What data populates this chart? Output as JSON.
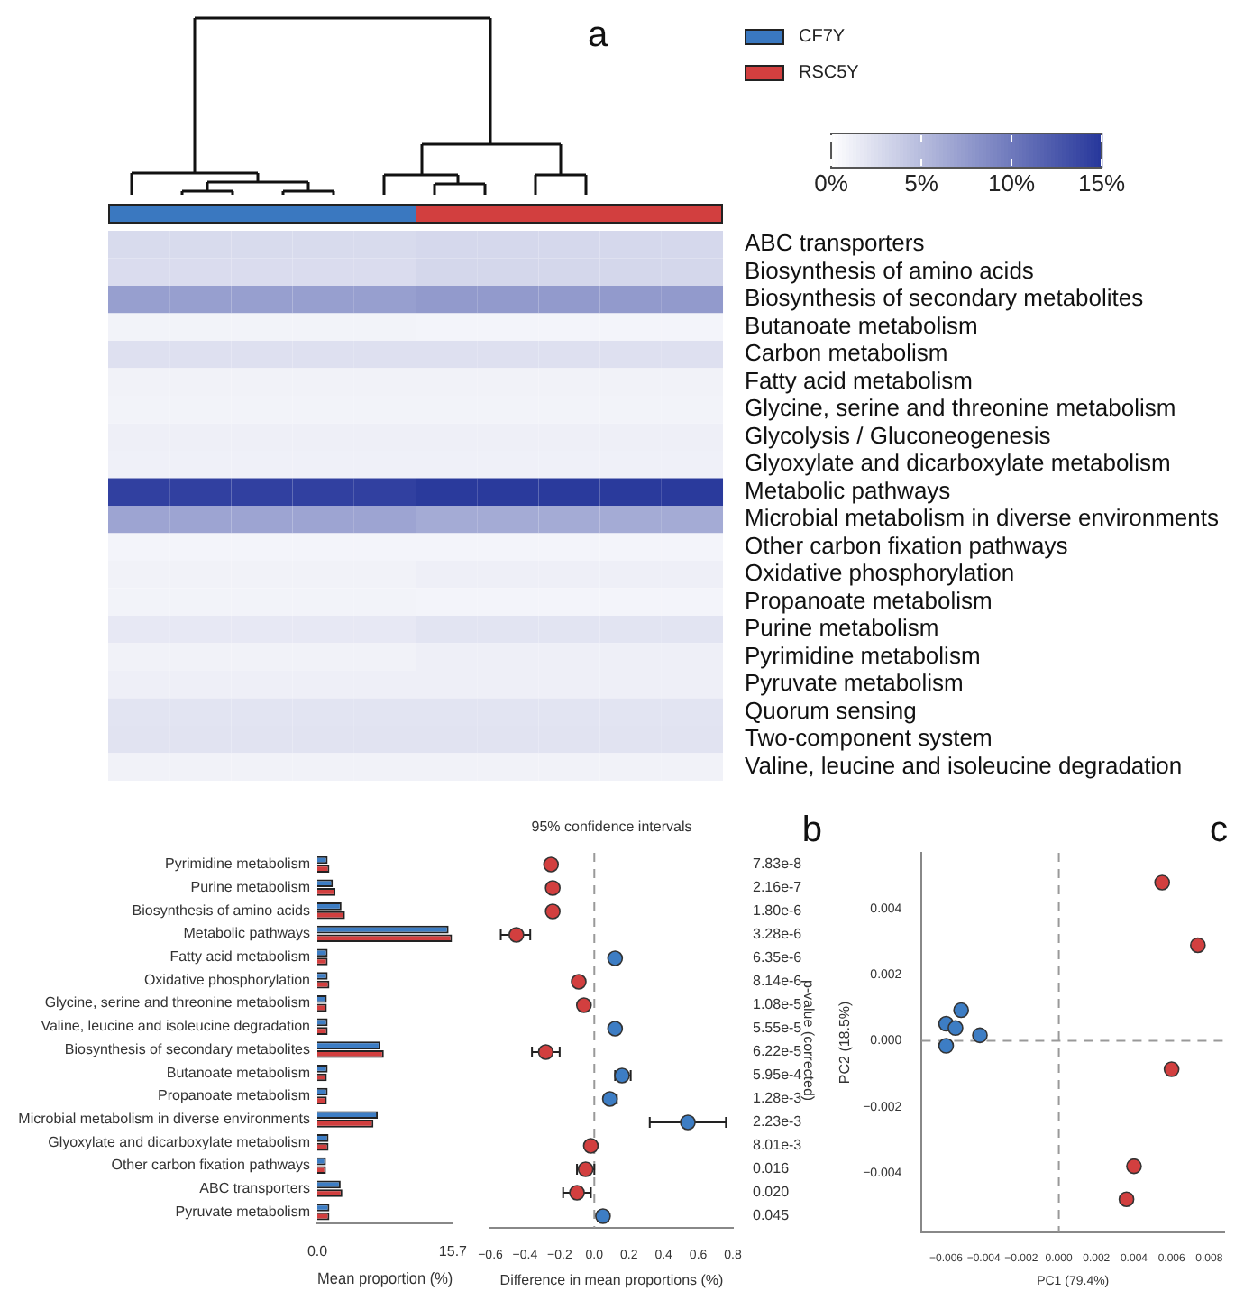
{
  "chart_data": [
    {
      "type": "heatmap",
      "annotations": [
        "a",
        "CF7Y",
        "RSC5Y"
      ],
      "colors": [
        "#3a78c0",
        "#d23f3f"
      ],
      "categories": [
        null,
        null,
        null,
        null,
        null,
        null,
        null,
        null,
        null,
        null
      ],
      "y_categories": [
        "ABC transporters",
        "Biosynthesis of amino acids",
        "Biosynthesis of secondary metabolites",
        "Butanoate metabolism",
        "Carbon metabolism",
        "Fatty acid metabolism",
        "Glycine, serine and threonine metabolism",
        "Glycolysis / Gluconeogenesis",
        "Glyoxylate and dicarboxylate metabolism",
        "Metabolic pathways",
        "Microbial metabolism in diverse environments",
        "Other carbon fixation pathways",
        "Oxidative phosphorylation",
        "Propanoate metabolism",
        "Purine metabolism",
        "Pyrimidine metabolism",
        "Pyruvate metabolism",
        "Quorum sensing",
        "Two-component system",
        "Valine, leucine and isoleucine degradation"
      ],
      "cells": [
        [
          2.7,
          2.7,
          2.7,
          2.7,
          2.7,
          2.9,
          2.9,
          2.9,
          2.9,
          2.9
        ],
        [
          2.6,
          2.6,
          2.6,
          2.6,
          2.6,
          3.0,
          3.0,
          3.0,
          3.0,
          3.0
        ],
        [
          7.2,
          7.2,
          7.2,
          7.2,
          7.2,
          7.6,
          7.6,
          7.6,
          7.6,
          7.6
        ],
        [
          0.9,
          0.9,
          0.9,
          0.9,
          0.9,
          0.8,
          0.8,
          0.8,
          0.8,
          0.8
        ],
        [
          2.3,
          2.3,
          2.3,
          2.3,
          2.3,
          2.3,
          2.3,
          2.3,
          2.3,
          2.3
        ],
        [
          1.0,
          1.0,
          1.0,
          1.0,
          1.0,
          1.0,
          1.0,
          1.0,
          1.0,
          1.0
        ],
        [
          0.9,
          0.9,
          0.9,
          0.9,
          0.9,
          0.9,
          0.9,
          0.9,
          0.9,
          0.9
        ],
        [
          1.2,
          1.2,
          1.2,
          1.2,
          1.2,
          1.2,
          1.2,
          1.2,
          1.2,
          1.2
        ],
        [
          1.1,
          1.1,
          1.1,
          1.1,
          1.1,
          1.1,
          1.1,
          1.1,
          1.1,
          1.1
        ],
        [
          14.3,
          14.3,
          14.3,
          14.3,
          14.3,
          14.8,
          14.8,
          14.8,
          14.8,
          14.8
        ],
        [
          6.8,
          6.8,
          6.8,
          6.8,
          6.8,
          6.3,
          6.3,
          6.3,
          6.3,
          6.3
        ],
        [
          0.8,
          0.8,
          0.8,
          0.8,
          0.8,
          0.8,
          0.8,
          0.8,
          0.8,
          0.8
        ],
        [
          1.0,
          1.0,
          1.0,
          1.0,
          1.0,
          1.2,
          1.2,
          1.2,
          1.2,
          1.2
        ],
        [
          0.9,
          0.9,
          0.9,
          0.9,
          0.9,
          0.8,
          0.8,
          0.8,
          0.8,
          0.8
        ],
        [
          1.7,
          1.7,
          1.7,
          1.7,
          1.7,
          2.0,
          2.0,
          2.0,
          2.0,
          2.0
        ],
        [
          1.0,
          1.0,
          1.0,
          1.0,
          1.0,
          1.2,
          1.2,
          1.2,
          1.2,
          1.2
        ],
        [
          1.2,
          1.2,
          1.2,
          1.2,
          1.2,
          1.2,
          1.2,
          1.2,
          1.2,
          1.2
        ],
        [
          2.0,
          2.0,
          2.0,
          2.0,
          2.0,
          2.0,
          2.0,
          2.0,
          2.0,
          2.0
        ],
        [
          2.1,
          2.1,
          2.1,
          2.1,
          2.1,
          2.1,
          2.1,
          2.1,
          2.1,
          2.1
        ],
        [
          1.0,
          1.0,
          1.0,
          1.0,
          1.0,
          1.0,
          1.0,
          1.0,
          1.0,
          1.0
        ]
      ],
      "clim": [
        0,
        15
      ],
      "cticks": [
        {
          "value": 0,
          "label": "0%"
        },
        {
          "value": 5,
          "label": "5%"
        },
        {
          "value": 10,
          "label": "10%"
        },
        {
          "value": 15,
          "label": "15%"
        }
      ]
    },
    {
      "type": "bar",
      "orientation": "horizontal",
      "xlabel": "Mean proportion (%)",
      "categories": [
        "Pyrimidine metabolism",
        "Purine metabolism",
        "Biosynthesis of amino acids",
        "Metabolic pathways",
        "Fatty acid metabolism",
        "Oxidative phosphorylation",
        "Glycine, serine and threonine metabolism",
        "Valine, leucine and isoleucine degradation",
        "Biosynthesis of secondary metabolites",
        "Butanoate metabolism",
        "Propanoate metabolism",
        "Microbial metabolism in diverse environments",
        "Glyoxylate and dicarboxylate metabolism",
        "Other carbon fixation pathways",
        "ABC transporters",
        "Pyruvate metabolism"
      ],
      "series": [
        {
          "color": "#3d7dc4",
          "values": [
            1.2,
            1.8,
            2.8,
            15.2,
            1.2,
            1.2,
            1.1,
            1.2,
            7.3,
            1.2,
            1.2,
            7.0,
            1.3,
            1.0,
            2.7,
            1.4
          ]
        },
        {
          "color": "#d23f3f",
          "values": [
            1.4,
            2.1,
            3.2,
            15.6,
            1.2,
            1.4,
            1.1,
            1.2,
            7.7,
            1.1,
            1.1,
            6.5,
            1.3,
            1.0,
            2.9,
            1.4
          ]
        }
      ],
      "xlim": [
        0,
        15.7
      ],
      "xticks": [
        {
          "value": 0,
          "label": "0.0"
        },
        15.7
      ]
    },
    {
      "type": "scatter",
      "orientation": "horizontal",
      "title": "95% confidence intervals",
      "annotations": [
        "b"
      ],
      "xlabel": "Difference in mean proportions (%)",
      "y2label": "p-value (corrected)",
      "tick_labels": "x",
      "marker": "circle",
      "categories": [
        null,
        null,
        null,
        null,
        null,
        null,
        null,
        null,
        null,
        null,
        null,
        null,
        null,
        null,
        null,
        null
      ],
      "y2_categories": [
        "7.83e-8",
        "2.16e-7",
        "1.80e-6",
        "3.28e-6",
        "6.35e-6",
        "8.14e-6",
        "1.08e-5",
        "5.55e-5",
        "6.22e-5",
        "5.95e-4",
        "1.28e-3",
        "2.23e-3",
        "8.01e-3",
        "0.016",
        "0.020",
        "0.045"
      ],
      "values": [
        -0.25,
        -0.24,
        -0.24,
        -0.45,
        0.12,
        -0.09,
        -0.06,
        0.12,
        -0.28,
        0.16,
        0.09,
        0.54,
        -0.02,
        -0.05,
        -0.1,
        0.05
      ],
      "colors": [
        "#d23f3f",
        "#d23f3f",
        "#d23f3f",
        "#d23f3f",
        "#3d7dc4",
        "#d23f3f",
        "#d23f3f",
        "#3d7dc4",
        "#d23f3f",
        "#3d7dc4",
        "#3d7dc4",
        "#3d7dc4",
        "#d23f3f",
        "#d23f3f",
        "#d23f3f",
        "#3d7dc4"
      ],
      "errors": [
        null,
        null,
        null,
        [
          -0.54,
          -0.37
        ],
        null,
        null,
        null,
        null,
        [
          -0.36,
          -0.2
        ],
        [
          0.12,
          0.21
        ],
        [
          0.06,
          0.13
        ],
        [
          0.32,
          0.76
        ],
        null,
        [
          -0.1,
          0
        ],
        [
          -0.18,
          -0.02
        ],
        [
          0.02,
          0.08
        ]
      ],
      "xlim": [
        -0.6,
        0.8
      ],
      "xticks": [
        {
          "value": -0.6,
          "label": "−0.6"
        },
        {
          "value": -0.4,
          "label": "−0.4"
        },
        {
          "value": -0.2,
          "label": "−0.2"
        },
        {
          "value": 0,
          "label": "0.0"
        },
        {
          "value": 0.2,
          "label": "0.2"
        },
        {
          "value": 0.4,
          "label": "0.4"
        },
        {
          "value": 0.6,
          "label": "0.6"
        },
        {
          "value": 0.8,
          "label": "0.8"
        }
      ],
      "ref_lines": [
        {
          "axis": "x",
          "value": 0,
          "line_style": "dashed",
          "color": "#999999"
        }
      ]
    },
    {
      "type": "scatter",
      "annotations": [
        "c"
      ],
      "xlabel": "PC1 (79.4%)",
      "ylabel": "PC2 (18.5%)",
      "marker": "circle",
      "series": [
        {
          "color": "#3d7dc4",
          "x": [
            -0.006,
            -0.0052,
            -0.0055,
            -0.0042,
            -0.006
          ],
          "values": [
            0.00052,
            0.00093,
            0.00039,
            0.00017,
            -0.00015
          ]
        },
        {
          "color": "#d23f3f",
          "x": [
            0.0055,
            0.0074,
            0.006,
            0.004,
            0.0036
          ],
          "values": [
            0.0048,
            0.0029,
            -0.00086,
            -0.0038,
            -0.0048
          ]
        }
      ],
      "xlim": [
        -0.0073,
        0.0088
      ],
      "ylim": [
        -0.0058,
        0.0057
      ],
      "xticks": [
        {
          "value": -0.006,
          "label": "−0.006"
        },
        {
          "value": -0.004,
          "label": "−0.004"
        },
        {
          "value": -0.002,
          "label": "−0.002"
        },
        {
          "value": 0,
          "label": "0.000"
        },
        {
          "value": 0.002,
          "label": "0.002"
        },
        {
          "value": 0.004,
          "label": "0.004"
        },
        {
          "value": 0.006,
          "label": "0.006"
        },
        {
          "value": 0.008,
          "label": "0.008"
        }
      ],
      "yticks": [
        {
          "value": -0.004,
          "label": "−0.004"
        },
        {
          "value": -0.002,
          "label": "−0.002"
        },
        {
          "value": 0,
          "label": "0.000"
        },
        {
          "value": 0.002,
          "label": "0.002"
        },
        {
          "value": 0.004,
          "label": "0.004"
        }
      ],
      "ref_lines": [
        {
          "axis": "x",
          "value": 0,
          "line_style": "dashed",
          "color": "#999999"
        },
        {
          "axis": "y",
          "value": 0,
          "line_style": "dashed",
          "color": "#999999"
        }
      ]
    }
  ]
}
